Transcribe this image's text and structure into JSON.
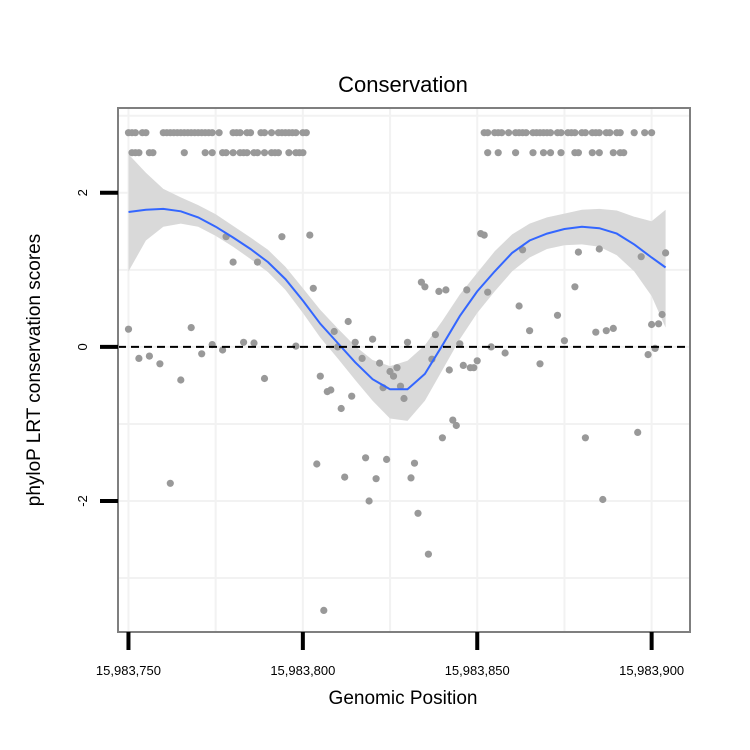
{
  "chart_data": {
    "type": "scatter",
    "title": "Conservation",
    "xlabel": "Genomic Position",
    "ylabel": "phyloP LRT conservation scores",
    "xlim": [
      15983747,
      15983911
    ],
    "ylim": [
      -3.7,
      3.1
    ],
    "x_ticks": [
      15983750,
      15983800,
      15983850,
      15983900
    ],
    "x_tick_labels": [
      "15,983,750",
      "15,983,800",
      "15,983,850",
      "15,983,900"
    ],
    "y_ticks": [
      -2,
      0,
      2
    ],
    "y_tick_labels": [
      "-2",
      "0",
      "2"
    ],
    "reference_line": {
      "y": 0,
      "style": "dashed"
    },
    "colors": {
      "points": "#999999",
      "smooth": "#3366FF",
      "band": "#D9D9D9",
      "frame": "#7F7F7F",
      "grid": "#F2F2F2"
    },
    "series": [
      {
        "name": "scores",
        "points": [
          [
            15983750,
            2.78
          ],
          [
            15983751,
            2.78
          ],
          [
            15983752,
            2.78
          ],
          [
            15983754,
            2.78
          ],
          [
            15983755,
            2.78
          ],
          [
            15983760,
            2.78
          ],
          [
            15983761,
            2.78
          ],
          [
            15983762,
            2.78
          ],
          [
            15983763,
            2.78
          ],
          [
            15983764,
            2.78
          ],
          [
            15983765,
            2.78
          ],
          [
            15983766,
            2.78
          ],
          [
            15983767,
            2.78
          ],
          [
            15983768,
            2.78
          ],
          [
            15983769,
            2.78
          ],
          [
            15983770,
            2.78
          ],
          [
            15983771,
            2.78
          ],
          [
            15983772,
            2.78
          ],
          [
            15983773,
            2.78
          ],
          [
            15983774,
            2.78
          ],
          [
            15983776,
            2.78
          ],
          [
            15983780,
            2.78
          ],
          [
            15983781,
            2.78
          ],
          [
            15983782,
            2.78
          ],
          [
            15983784,
            2.78
          ],
          [
            15983785,
            2.78
          ],
          [
            15983788,
            2.78
          ],
          [
            15983789,
            2.78
          ],
          [
            15983791,
            2.78
          ],
          [
            15983793,
            2.78
          ],
          [
            15983794,
            2.78
          ],
          [
            15983795,
            2.78
          ],
          [
            15983796,
            2.78
          ],
          [
            15983797,
            2.78
          ],
          [
            15983798,
            2.78
          ],
          [
            15983800,
            2.78
          ],
          [
            15983801,
            2.78
          ],
          [
            15983751,
            2.52
          ],
          [
            15983752,
            2.52
          ],
          [
            15983753,
            2.52
          ],
          [
            15983756,
            2.52
          ],
          [
            15983757,
            2.52
          ],
          [
            15983766,
            2.52
          ],
          [
            15983772,
            2.52
          ],
          [
            15983774,
            2.52
          ],
          [
            15983777,
            2.52
          ],
          [
            15983778,
            2.52
          ],
          [
            15983780,
            2.52
          ],
          [
            15983782,
            2.52
          ],
          [
            15983783,
            2.52
          ],
          [
            15983784,
            2.52
          ],
          [
            15983786,
            2.52
          ],
          [
            15983787,
            2.52
          ],
          [
            15983789,
            2.52
          ],
          [
            15983791,
            2.52
          ],
          [
            15983792,
            2.52
          ],
          [
            15983793,
            2.52
          ],
          [
            15983796,
            2.52
          ],
          [
            15983798,
            2.52
          ],
          [
            15983799,
            2.52
          ],
          [
            15983800,
            2.52
          ],
          [
            15983852,
            2.78
          ],
          [
            15983853,
            2.78
          ],
          [
            15983855,
            2.78
          ],
          [
            15983856,
            2.78
          ],
          [
            15983857,
            2.78
          ],
          [
            15983859,
            2.78
          ],
          [
            15983861,
            2.78
          ],
          [
            15983862,
            2.78
          ],
          [
            15983863,
            2.78
          ],
          [
            15983864,
            2.78
          ],
          [
            15983866,
            2.78
          ],
          [
            15983867,
            2.78
          ],
          [
            15983868,
            2.78
          ],
          [
            15983869,
            2.78
          ],
          [
            15983870,
            2.78
          ],
          [
            15983871,
            2.78
          ],
          [
            15983873,
            2.78
          ],
          [
            15983874,
            2.78
          ],
          [
            15983876,
            2.78
          ],
          [
            15983877,
            2.78
          ],
          [
            15983878,
            2.78
          ],
          [
            15983880,
            2.78
          ],
          [
            15983881,
            2.78
          ],
          [
            15983883,
            2.78
          ],
          [
            15983884,
            2.78
          ],
          [
            15983885,
            2.78
          ],
          [
            15983887,
            2.78
          ],
          [
            15983888,
            2.78
          ],
          [
            15983890,
            2.78
          ],
          [
            15983891,
            2.78
          ],
          [
            15983895,
            2.78
          ],
          [
            15983898,
            2.78
          ],
          [
            15983900,
            2.78
          ],
          [
            15983853,
            2.52
          ],
          [
            15983856,
            2.52
          ],
          [
            15983861,
            2.52
          ],
          [
            15983866,
            2.52
          ],
          [
            15983869,
            2.52
          ],
          [
            15983871,
            2.52
          ],
          [
            15983874,
            2.52
          ],
          [
            15983878,
            2.52
          ],
          [
            15983879,
            2.52
          ],
          [
            15983883,
            2.52
          ],
          [
            15983885,
            2.52
          ],
          [
            15983889,
            2.52
          ],
          [
            15983891,
            2.52
          ],
          [
            15983892,
            2.52
          ],
          [
            15983750,
            0.23
          ],
          [
            15983753,
            -0.15
          ],
          [
            15983756,
            -0.12
          ],
          [
            15983759,
            -0.22
          ],
          [
            15983762,
            -1.77
          ],
          [
            15983765,
            -0.43
          ],
          [
            15983768,
            0.25
          ],
          [
            15983771,
            -0.09
          ],
          [
            15983774,
            0.03
          ],
          [
            15983777,
            -0.04
          ],
          [
            15983778,
            1.43
          ],
          [
            15983780,
            1.1
          ],
          [
            15983783,
            0.06
          ],
          [
            15983786,
            0.05
          ],
          [
            15983787,
            1.1
          ],
          [
            15983789,
            -0.41
          ],
          [
            15983794,
            1.43
          ],
          [
            15983798,
            0.01
          ],
          [
            15983802,
            1.45
          ],
          [
            15983803,
            0.76
          ],
          [
            15983804,
            -1.52
          ],
          [
            15983805,
            -0.38
          ],
          [
            15983806,
            -3.42
          ],
          [
            15983807,
            -0.58
          ],
          [
            15983808,
            -0.56
          ],
          [
            15983809,
            0.2
          ],
          [
            15983810,
            0.0
          ],
          [
            15983811,
            -0.8
          ],
          [
            15983812,
            -1.69
          ],
          [
            15983813,
            0.33
          ],
          [
            15983814,
            -0.64
          ],
          [
            15983815,
            0.06
          ],
          [
            15983817,
            -0.15
          ],
          [
            15983818,
            -1.44
          ],
          [
            15983819,
            -2.0
          ],
          [
            15983820,
            0.1
          ],
          [
            15983821,
            -1.71
          ],
          [
            15983822,
            -0.21
          ],
          [
            15983823,
            -0.53
          ],
          [
            15983824,
            -1.46
          ],
          [
            15983825,
            -0.32
          ],
          [
            15983826,
            -0.38
          ],
          [
            15983827,
            -0.27
          ],
          [
            15983828,
            -0.51
          ],
          [
            15983829,
            -0.67
          ],
          [
            15983830,
            0.06
          ],
          [
            15983831,
            -1.7
          ],
          [
            15983832,
            -1.51
          ],
          [
            15983833,
            -2.16
          ],
          [
            15983834,
            0.84
          ],
          [
            15983835,
            0.78
          ],
          [
            15983836,
            -2.69
          ],
          [
            15983837,
            -0.16
          ],
          [
            15983838,
            0.16
          ],
          [
            15983839,
            0.72
          ],
          [
            15983840,
            -1.18
          ],
          [
            15983841,
            0.74
          ],
          [
            15983842,
            -0.3
          ],
          [
            15983843,
            -0.95
          ],
          [
            15983844,
            -1.02
          ],
          [
            15983845,
            0.04
          ],
          [
            15983846,
            -0.24
          ],
          [
            15983847,
            0.74
          ],
          [
            15983848,
            -0.27
          ],
          [
            15983849,
            -0.27
          ],
          [
            15983850,
            -0.18
          ],
          [
            15983851,
            1.47
          ],
          [
            15983852,
            1.45
          ],
          [
            15983853,
            0.71
          ],
          [
            15983854,
            0.0
          ],
          [
            15983858,
            -0.08
          ],
          [
            15983862,
            0.53
          ],
          [
            15983863,
            1.26
          ],
          [
            15983865,
            0.21
          ],
          [
            15983868,
            -0.22
          ],
          [
            15983873,
            0.41
          ],
          [
            15983875,
            0.08
          ],
          [
            15983878,
            0.78
          ],
          [
            15983879,
            1.23
          ],
          [
            15983881,
            -1.18
          ],
          [
            15983884,
            0.19
          ],
          [
            15983885,
            1.27
          ],
          [
            15983886,
            -1.98
          ],
          [
            15983887,
            0.21
          ],
          [
            15983889,
            0.24
          ],
          [
            15983896,
            -1.11
          ],
          [
            15983897,
            1.17
          ],
          [
            15983899,
            -0.1
          ],
          [
            15983900,
            0.29
          ],
          [
            15983901,
            -0.02
          ],
          [
            15983902,
            0.3
          ],
          [
            15983903,
            0.42
          ],
          [
            15983904,
            1.22
          ]
        ]
      }
    ],
    "smooth": {
      "x": [
        15983750,
        15983755,
        15983760,
        15983765,
        15983770,
        15983775,
        15983780,
        15983785,
        15983790,
        15983795,
        15983800,
        15983805,
        15983810,
        15983815,
        15983820,
        15983825,
        15983830,
        15983835,
        15983840,
        15983845,
        15983850,
        15983855,
        15983860,
        15983865,
        15983870,
        15983875,
        15983880,
        15983885,
        15983890,
        15983895,
        15983900,
        15983904
      ],
      "y": [
        1.75,
        1.78,
        1.79,
        1.76,
        1.68,
        1.56,
        1.42,
        1.27,
        1.1,
        0.88,
        0.6,
        0.3,
        0.05,
        -0.2,
        -0.42,
        -0.55,
        -0.55,
        -0.35,
        0.02,
        0.4,
        0.72,
        0.98,
        1.22,
        1.38,
        1.47,
        1.53,
        1.56,
        1.54,
        1.47,
        1.33,
        1.16,
        1.03
      ],
      "lower": [
        0.98,
        1.38,
        1.56,
        1.6,
        1.56,
        1.44,
        1.3,
        1.14,
        0.97,
        0.74,
        0.44,
        0.12,
        -0.15,
        -0.43,
        -0.7,
        -0.93,
        -0.96,
        -0.7,
        -0.3,
        0.1,
        0.44,
        0.72,
        0.98,
        1.16,
        1.27,
        1.32,
        1.33,
        1.3,
        1.19,
        0.98,
        0.66,
        0.25
      ],
      "upper": [
        2.5,
        2.26,
        2.05,
        1.94,
        1.84,
        1.72,
        1.57,
        1.42,
        1.26,
        1.04,
        0.76,
        0.48,
        0.24,
        0.01,
        -0.17,
        -0.25,
        -0.18,
        0.02,
        0.34,
        0.68,
        0.96,
        1.24,
        1.46,
        1.6,
        1.68,
        1.73,
        1.78,
        1.79,
        1.77,
        1.69,
        1.63,
        1.78
      ]
    }
  }
}
